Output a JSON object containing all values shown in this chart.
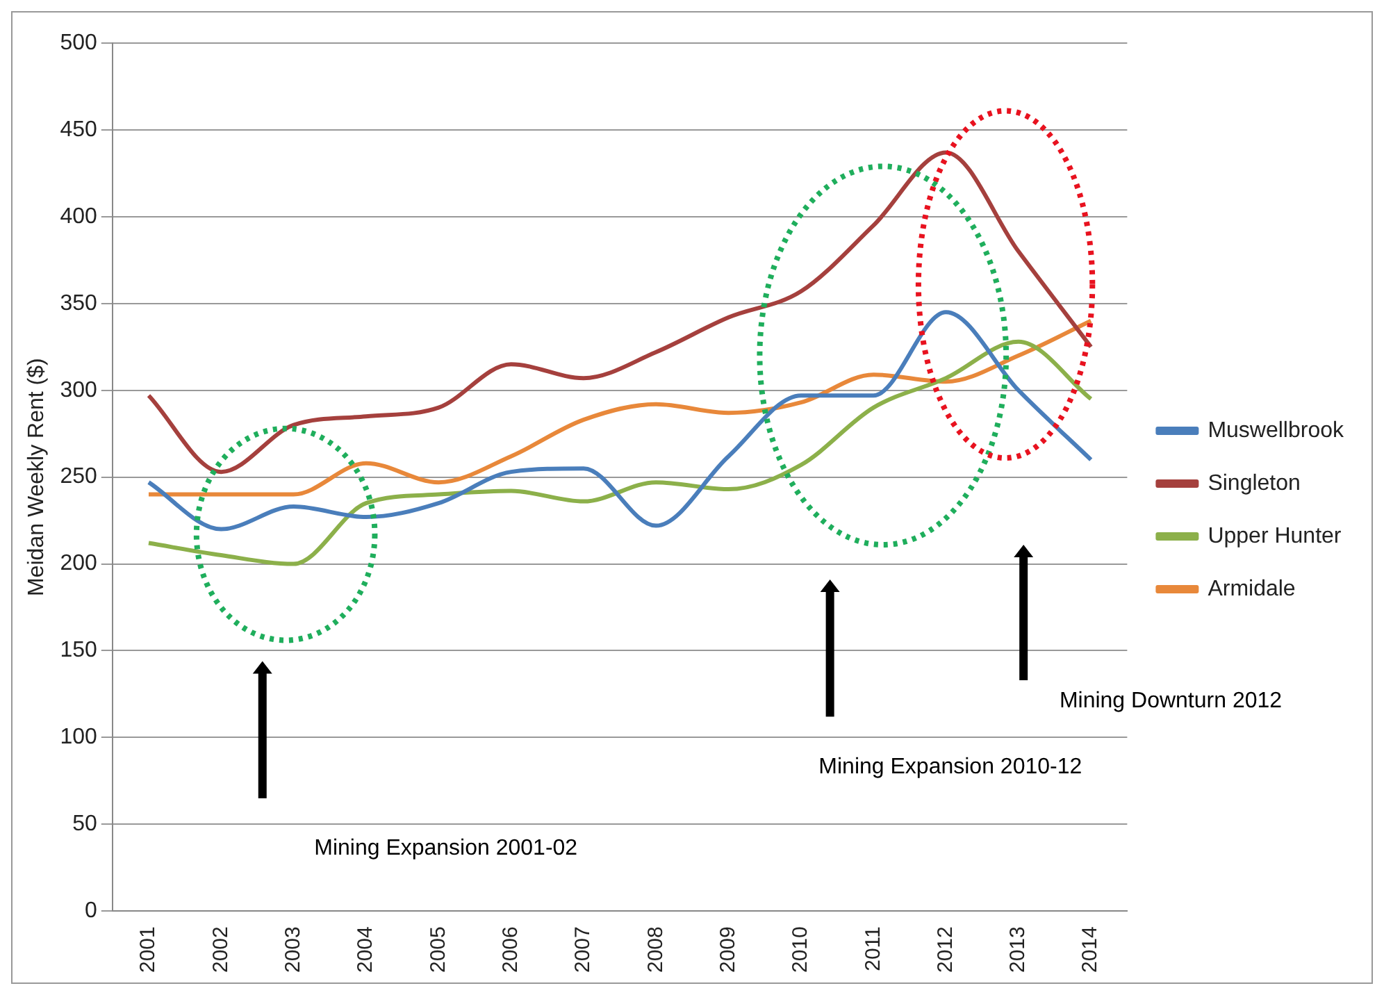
{
  "chart_data": {
    "type": "line",
    "ylabel": "Meidan Weekly Rent ($)",
    "categories": [
      "2001",
      "2002",
      "2003",
      "2004",
      "2005",
      "2006",
      "2007",
      "2008",
      "2009",
      "2010",
      "2011",
      "2012",
      "2013",
      "2014"
    ],
    "series": [
      {
        "name": "Muswellbrook",
        "color": "#4a7ebb",
        "values": [
          247,
          220,
          233,
          227,
          235,
          253,
          255,
          222,
          262,
          297,
          297,
          345,
          300,
          260
        ]
      },
      {
        "name": "Singleton",
        "color": "#a5403d",
        "values": [
          297,
          253,
          280,
          285,
          290,
          315,
          307,
          322,
          342,
          357,
          395,
          437,
          380,
          325
        ]
      },
      {
        "name": "Upper Hunter",
        "color": "#8cb04a",
        "values": [
          212,
          205,
          200,
          235,
          240,
          242,
          236,
          247,
          243,
          257,
          290,
          307,
          328,
          295
        ]
      },
      {
        "name": "Armidale",
        "color": "#e8883a",
        "values": [
          240,
          240,
          240,
          258,
          247,
          262,
          283,
          292,
          287,
          293,
          309,
          305,
          320,
          340
        ]
      }
    ],
    "ylim": [
      0,
      500
    ],
    "yticks": [
      0,
      50,
      100,
      150,
      200,
      250,
      300,
      350,
      400,
      450,
      500
    ],
    "grid": "y",
    "legend": "right",
    "marker": "none",
    "line_style": "solid",
    "annotations": [
      "Mining Expansion 2001-02",
      "Mining Expansion 2010-12",
      "Mining Downturn 2012"
    ]
  }
}
